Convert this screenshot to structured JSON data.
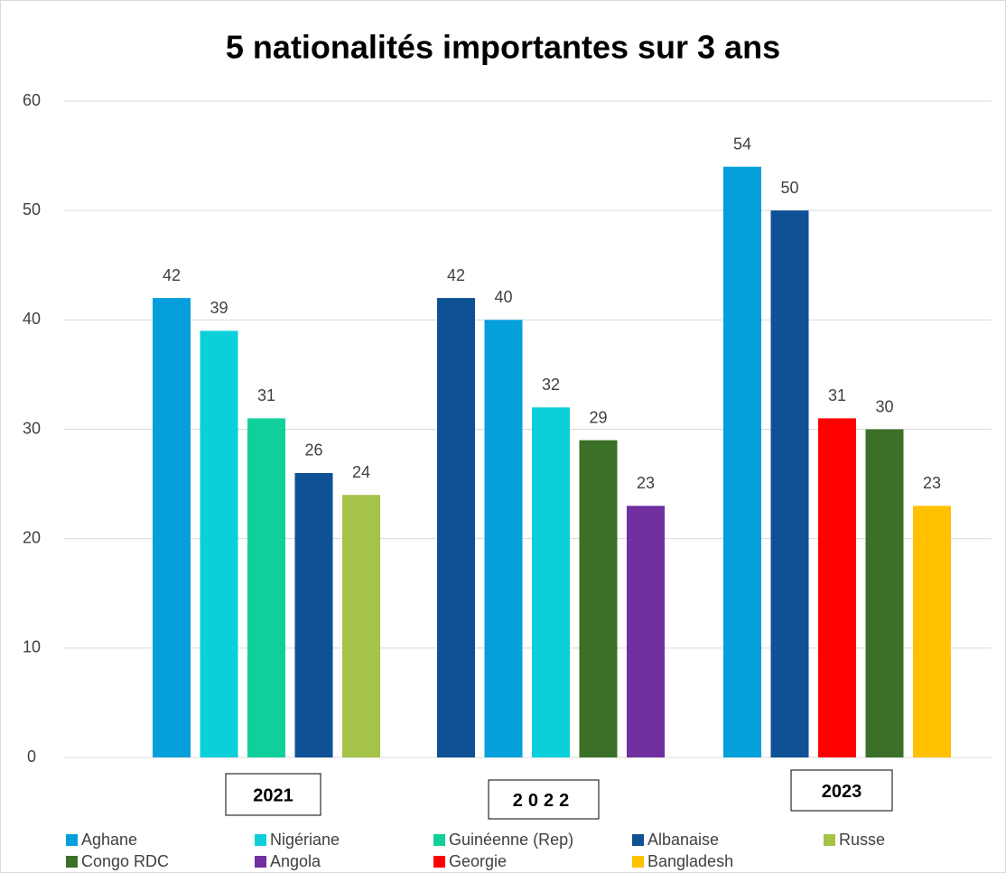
{
  "chart_data": {
    "type": "bar",
    "title": "5 nationalités importantes sur 3 ans",
    "categories": [
      "2021",
      "2022",
      "2023"
    ],
    "series": [
      {
        "name": "Aghane",
        "color": "#059fdb",
        "values": [
          42,
          40,
          54
        ]
      },
      {
        "name": "Nigériane",
        "color": "#0bd0d9",
        "values": [
          39,
          32,
          null
        ]
      },
      {
        "name": "Guinéenne (Rep)",
        "color": "#10cf9b",
        "values": [
          31,
          null,
          null
        ]
      },
      {
        "name": "Albanaise",
        "color": "#0e5194",
        "values": [
          26,
          42,
          50
        ]
      },
      {
        "name": "Russe",
        "color": "#a5c249",
        "values": [
          24,
          null,
          null
        ]
      },
      {
        "name": "Congo RDC",
        "color": "#3b7028",
        "values": [
          null,
          29,
          30
        ]
      },
      {
        "name": "Angola",
        "color": "#7030a0",
        "values": [
          null,
          23,
          null
        ]
      },
      {
        "name": "Georgie",
        "color": "#ff0000",
        "values": [
          null,
          null,
          31
        ]
      },
      {
        "name": "Bangladesh",
        "color": "#ffc000",
        "values": [
          null,
          null,
          23
        ]
      }
    ],
    "ylim": [
      0,
      60
    ],
    "yticks": [
      0,
      10,
      20,
      30,
      40,
      50,
      60
    ],
    "grid": true,
    "legend": "bottom"
  }
}
